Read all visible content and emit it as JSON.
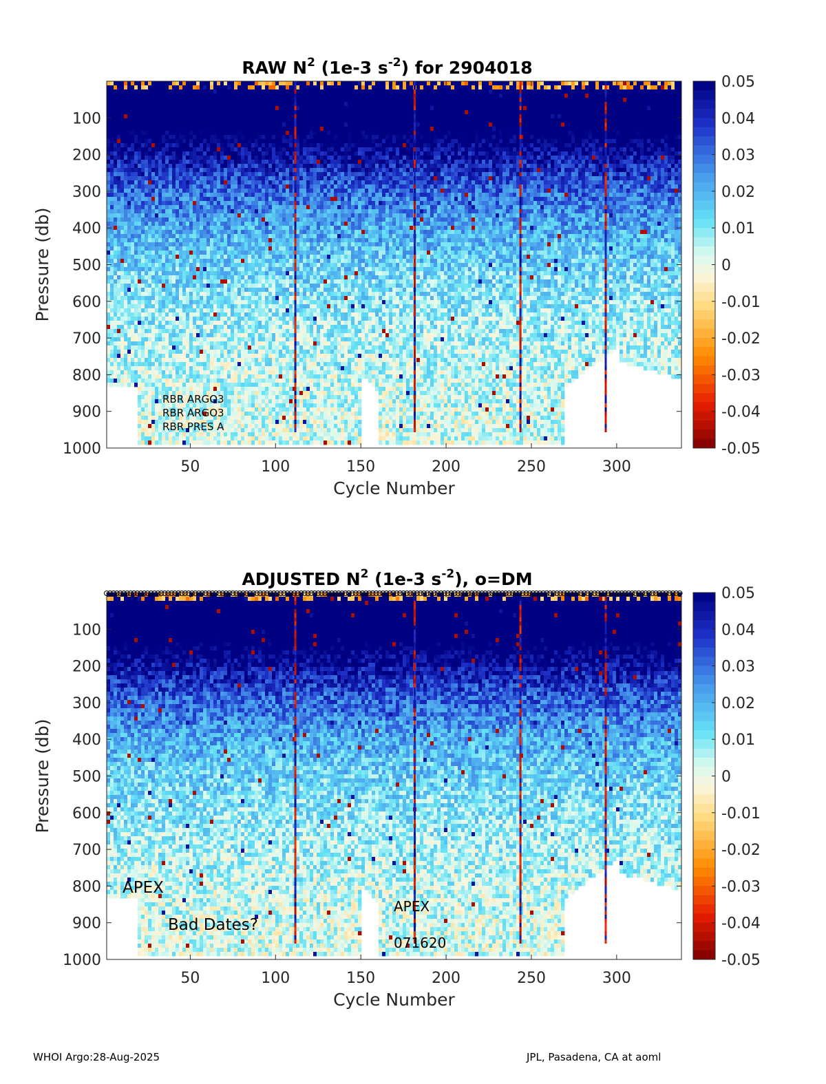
{
  "chart_data": [
    {
      "type": "heatmap",
      "title_prefix": "RAW N",
      "title_exp": "2",
      "title_mid": " (1e-3 s",
      "title_exp2": "-2",
      "title_suffix": ") for 2904018",
      "xlabel": "Cycle Number",
      "ylabel": "Pressure (db)",
      "xlim": [
        1,
        338
      ],
      "ylim": [
        1000,
        0
      ],
      "xticks": [
        "50",
        "100",
        "150",
        "200",
        "250",
        "300"
      ],
      "yticks": [
        "100",
        "200",
        "300",
        "400",
        "500",
        "600",
        "700",
        "800",
        "900",
        "1000"
      ],
      "colorbar": {
        "range": [
          -0.05,
          0.05
        ],
        "ticks": [
          "0.05",
          "0.04",
          "0.03",
          "0.02",
          "0.01",
          "0",
          "-0.01",
          "-0.02",
          "-0.03",
          "-0.04",
          "-0.05"
        ]
      },
      "annotations": [
        "RBR ARGO3",
        "RBR ARGO3",
        "RBR PRES A"
      ],
      "dm_markers": false
    },
    {
      "type": "heatmap",
      "title_prefix": "ADJUSTED N",
      "title_exp": "2",
      "title_mid": " (1e-3 s",
      "title_exp2": "-2",
      "title_suffix": "), o=DM",
      "xlabel": "Cycle Number",
      "ylabel": "Pressure (db)",
      "xlim": [
        1,
        338
      ],
      "ylim": [
        1000,
        0
      ],
      "xticks": [
        "50",
        "100",
        "150",
        "200",
        "250",
        "300"
      ],
      "yticks": [
        "100",
        "200",
        "300",
        "400",
        "500",
        "600",
        "700",
        "800",
        "900",
        "1000"
      ],
      "colorbar": {
        "range": [
          -0.05,
          0.05
        ],
        "ticks": [
          "0.05",
          "0.04",
          "0.03",
          "0.02",
          "0.01",
          "0",
          "-0.01",
          "-0.02",
          "-0.03",
          "-0.04",
          "-0.05"
        ]
      },
      "annotations": [
        "APEX",
        "Bad Dates?",
        "APEX",
        "071620"
      ],
      "dm_markers": true
    }
  ],
  "footer": {
    "left": "WHOI Argo:28-Aug-2025",
    "right": "JPL, Pasadena, CA at aoml"
  }
}
